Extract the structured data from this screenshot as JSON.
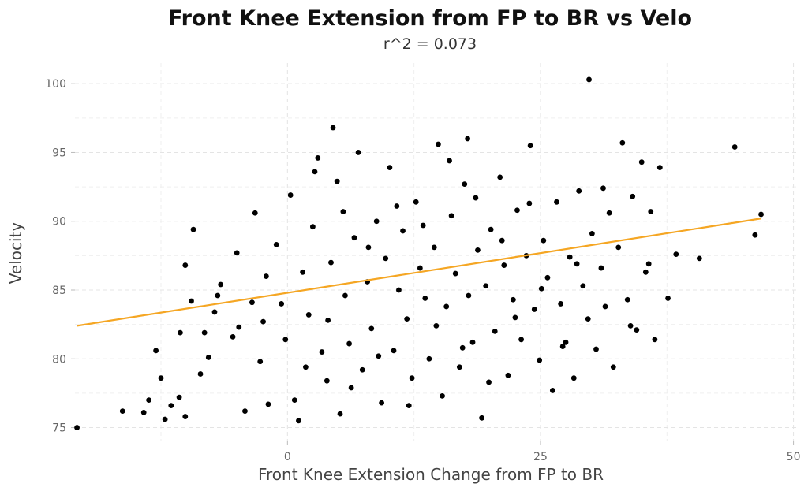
{
  "chart_data": {
    "type": "scatter",
    "title": "Front Knee Extension from FP to BR vs Velo",
    "subtitle": "r^2 = 0.073",
    "xlabel": "Front Knee Extension Change from FP to BR",
    "ylabel": "Velocity",
    "xlim": [
      -21,
      50.5
    ],
    "ylim": [
      74,
      101.5
    ],
    "x_ticks": [
      0,
      25,
      50
    ],
    "y_ticks": [
      75,
      80,
      85,
      90,
      95,
      100
    ],
    "grid": true,
    "colors": {
      "points": "#000000",
      "trend": "#F5A623"
    },
    "trend_line": {
      "x": [
        -20.8,
        46.8
      ],
      "y": [
        82.4,
        90.2
      ]
    },
    "points": [
      [
        -20.8,
        75.0
      ],
      [
        -16.3,
        76.2
      ],
      [
        -14.2,
        76.1
      ],
      [
        -13.7,
        77.0
      ],
      [
        -12.5,
        78.6
      ],
      [
        -12.1,
        75.6
      ],
      [
        -11.5,
        76.6
      ],
      [
        -10.7,
        77.2
      ],
      [
        -10.6,
        81.9
      ],
      [
        -10.1,
        75.8
      ],
      [
        -9.5,
        84.2
      ],
      [
        -9.3,
        89.4
      ],
      [
        -8.6,
        78.9
      ],
      [
        -7.8,
        80.1
      ],
      [
        -7.2,
        83.4
      ],
      [
        -6.6,
        85.4
      ],
      [
        -5.4,
        81.6
      ],
      [
        -5.0,
        87.7
      ],
      [
        -4.2,
        76.2
      ],
      [
        -3.5,
        84.1
      ],
      [
        -3.2,
        90.6
      ],
      [
        -2.7,
        79.8
      ],
      [
        -2.4,
        82.7
      ],
      [
        -1.9,
        76.7
      ],
      [
        -1.1,
        88.3
      ],
      [
        -0.6,
        84.0
      ],
      [
        -0.2,
        81.4
      ],
      [
        0.7,
        77.0
      ],
      [
        1.1,
        75.5
      ],
      [
        1.5,
        86.3
      ],
      [
        2.1,
        83.2
      ],
      [
        2.5,
        89.6
      ],
      [
        3.0,
        94.6
      ],
      [
        3.4,
        80.5
      ],
      [
        3.9,
        78.4
      ],
      [
        4.3,
        87.0
      ],
      [
        4.9,
        92.9
      ],
      [
        5.2,
        76.0
      ],
      [
        5.7,
        84.6
      ],
      [
        6.1,
        81.1
      ],
      [
        6.6,
        88.8
      ],
      [
        7.0,
        95.0
      ],
      [
        7.4,
        79.2
      ],
      [
        7.9,
        85.6
      ],
      [
        8.3,
        82.2
      ],
      [
        8.8,
        90.0
      ],
      [
        9.3,
        76.8
      ],
      [
        9.7,
        87.3
      ],
      [
        10.1,
        93.9
      ],
      [
        10.5,
        80.6
      ],
      [
        11.0,
        85.0
      ],
      [
        11.4,
        89.3
      ],
      [
        11.8,
        82.9
      ],
      [
        12.3,
        78.6
      ],
      [
        12.7,
        91.4
      ],
      [
        13.1,
        86.6
      ],
      [
        13.6,
        84.4
      ],
      [
        14.0,
        80.0
      ],
      [
        14.5,
        88.1
      ],
      [
        14.9,
        95.6
      ],
      [
        15.3,
        77.3
      ],
      [
        15.7,
        83.8
      ],
      [
        16.2,
        90.4
      ],
      [
        16.6,
        86.2
      ],
      [
        17.0,
        79.4
      ],
      [
        17.5,
        92.7
      ],
      [
        17.9,
        84.6
      ],
      [
        18.3,
        81.2
      ],
      [
        18.8,
        87.9
      ],
      [
        19.2,
        75.7
      ],
      [
        19.6,
        85.3
      ],
      [
        20.1,
        89.4
      ],
      [
        20.5,
        82.0
      ],
      [
        21.0,
        93.2
      ],
      [
        21.4,
        86.8
      ],
      [
        21.8,
        78.8
      ],
      [
        22.3,
        84.3
      ],
      [
        22.7,
        90.8
      ],
      [
        23.1,
        81.4
      ],
      [
        23.6,
        87.5
      ],
      [
        24.0,
        95.5
      ],
      [
        24.4,
        83.6
      ],
      [
        24.9,
        79.9
      ],
      [
        25.3,
        88.6
      ],
      [
        25.7,
        85.9
      ],
      [
        26.2,
        77.7
      ],
      [
        26.6,
        91.4
      ],
      [
        27.0,
        84.0
      ],
      [
        27.5,
        81.2
      ],
      [
        27.9,
        87.4
      ],
      [
        28.3,
        78.6
      ],
      [
        28.8,
        92.2
      ],
      [
        29.2,
        85.3
      ],
      [
        29.7,
        82.9
      ],
      [
        30.1,
        89.1
      ],
      [
        30.5,
        80.7
      ],
      [
        31.0,
        86.6
      ],
      [
        31.4,
        83.8
      ],
      [
        31.8,
        90.6
      ],
      [
        32.2,
        79.4
      ],
      [
        32.7,
        88.1
      ],
      [
        33.1,
        95.7
      ],
      [
        33.6,
        84.3
      ],
      [
        34.1,
        91.8
      ],
      [
        34.5,
        82.1
      ],
      [
        35.0,
        94.3
      ],
      [
        35.4,
        86.3
      ],
      [
        35.9,
        90.7
      ],
      [
        36.3,
        81.4
      ],
      [
        36.8,
        93.9
      ],
      [
        37.6,
        84.4
      ],
      [
        38.4,
        87.6
      ],
      [
        40.7,
        87.3
      ],
      [
        44.2,
        95.4
      ],
      [
        46.2,
        89.0
      ],
      [
        46.8,
        90.5
      ],
      [
        29.8,
        100.3
      ],
      [
        4.5,
        96.8
      ],
      [
        17.8,
        96.0
      ],
      [
        -10.1,
        86.8
      ],
      [
        -13.0,
        80.6
      ],
      [
        -8.2,
        81.9
      ],
      [
        -6.9,
        84.6
      ],
      [
        -4.8,
        82.3
      ],
      [
        -2.1,
        86.0
      ],
      [
        0.3,
        91.9
      ],
      [
        1.8,
        79.4
      ],
      [
        2.7,
        93.6
      ],
      [
        4.0,
        82.8
      ],
      [
        5.5,
        90.7
      ],
      [
        6.3,
        77.9
      ],
      [
        8.0,
        88.1
      ],
      [
        9.0,
        80.2
      ],
      [
        10.8,
        91.1
      ],
      [
        12.0,
        76.6
      ],
      [
        13.4,
        89.7
      ],
      [
        14.7,
        82.4
      ],
      [
        16.0,
        94.4
      ],
      [
        17.3,
        80.8
      ],
      [
        18.6,
        91.7
      ],
      [
        19.9,
        78.3
      ],
      [
        21.2,
        88.6
      ],
      [
        22.5,
        83.0
      ],
      [
        23.9,
        91.3
      ],
      [
        25.1,
        85.1
      ],
      [
        27.2,
        80.9
      ],
      [
        28.6,
        86.9
      ],
      [
        31.2,
        92.4
      ],
      [
        33.9,
        82.4
      ],
      [
        35.7,
        86.9
      ]
    ]
  }
}
